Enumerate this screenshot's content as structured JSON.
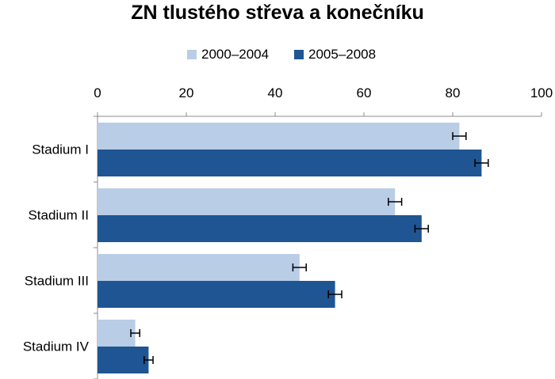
{
  "chart_data": {
    "type": "bar",
    "orientation": "horizontal",
    "title": "ZN tlustého střeva a konečníku",
    "categories": [
      "Stadium I",
      "Stadium II",
      "Stadium III",
      "Stadium IV"
    ],
    "series": [
      {
        "name": "2000–2004",
        "color": "#b9cde6",
        "values": [
          81.5,
          67,
          45.5,
          8.5
        ],
        "error": [
          1.5,
          1.5,
          1.5,
          1.0
        ]
      },
      {
        "name": "2005–2008",
        "color": "#1f5592",
        "values": [
          86.5,
          73,
          53.5,
          11.5
        ],
        "error": [
          1.5,
          1.5,
          1.5,
          1.0
        ]
      }
    ],
    "xlim": [
      0,
      100
    ],
    "xticks": [
      0,
      20,
      40,
      60,
      80,
      100
    ],
    "xaxis_position": "top",
    "legend_position": "top-center",
    "grid": false,
    "error_bars": true
  }
}
